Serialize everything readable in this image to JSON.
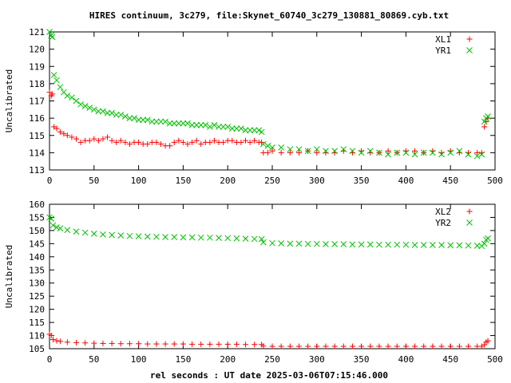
{
  "figure": {
    "title": "HIRES continuum, 3c279, file:Skynet_60740_3c279_130881_80869.cyb.txt",
    "xlabel": "rel seconds : UT date 2025-03-06T07:15:46.000",
    "colors": {
      "XL": "#ff0000",
      "YR": "#00c000"
    }
  },
  "chart_data": [
    {
      "type": "scatter",
      "title": "HIRES continuum, 3c279, file:Skynet_60740_3c279_130881_80869.cyb.txt",
      "xlabel": "",
      "ylabel": "Uncalibrated",
      "xlim": [
        0,
        500
      ],
      "ylim": [
        113,
        121
      ],
      "xticks": [
        0,
        50,
        100,
        150,
        200,
        250,
        300,
        350,
        400,
        450,
        500
      ],
      "yticks": [
        113,
        114,
        115,
        116,
        117,
        118,
        119,
        120,
        121
      ],
      "grid": false,
      "legend_position": "top-right",
      "series": [
        {
          "name": "XL1",
          "marker": "plus",
          "color": "#ff0000",
          "x": [
            0,
            2,
            3,
            5,
            8,
            12,
            16,
            20,
            25,
            30,
            35,
            40,
            45,
            50,
            55,
            60,
            65,
            70,
            75,
            80,
            85,
            90,
            95,
            100,
            105,
            110,
            115,
            120,
            125,
            130,
            135,
            140,
            145,
            150,
            155,
            160,
            165,
            170,
            175,
            180,
            185,
            190,
            195,
            200,
            205,
            210,
            215,
            220,
            225,
            230,
            235,
            238,
            240,
            245,
            250,
            260,
            270,
            280,
            290,
            300,
            310,
            320,
            330,
            340,
            350,
            360,
            370,
            380,
            390,
            400,
            410,
            420,
            430,
            440,
            450,
            460,
            470,
            480,
            485,
            488,
            490,
            492
          ],
          "y": [
            117.5,
            117.3,
            117.4,
            115.5,
            115.4,
            115.2,
            115.1,
            115.0,
            114.9,
            114.8,
            114.6,
            114.7,
            114.7,
            114.8,
            114.7,
            114.8,
            114.9,
            114.7,
            114.6,
            114.7,
            114.6,
            114.5,
            114.6,
            114.6,
            114.5,
            114.5,
            114.6,
            114.6,
            114.5,
            114.4,
            114.4,
            114.6,
            114.7,
            114.6,
            114.5,
            114.6,
            114.7,
            114.5,
            114.6,
            114.6,
            114.7,
            114.6,
            114.6,
            114.7,
            114.7,
            114.6,
            114.6,
            114.7,
            114.6,
            114.7,
            114.6,
            114.6,
            114.0,
            114.0,
            114.1,
            114.0,
            114.0,
            114.0,
            114.1,
            114.0,
            114.0,
            114.0,
            114.1,
            114.0,
            114.1,
            114.0,
            114.0,
            114.1,
            114.0,
            114.1,
            114.1,
            114.0,
            114.1,
            114.0,
            114.1,
            114.0,
            114.0,
            114.0,
            114.0,
            115.5,
            115.8,
            116.0
          ]
        },
        {
          "name": "YR1",
          "marker": "x",
          "color": "#00c000",
          "x": [
            0,
            2,
            3,
            5,
            8,
            12,
            16,
            20,
            25,
            30,
            35,
            40,
            45,
            50,
            55,
            60,
            65,
            70,
            75,
            80,
            85,
            90,
            95,
            100,
            105,
            110,
            115,
            120,
            125,
            130,
            135,
            140,
            145,
            150,
            155,
            160,
            165,
            170,
            175,
            180,
            185,
            190,
            195,
            200,
            205,
            210,
            215,
            220,
            225,
            230,
            235,
            238,
            240,
            245,
            250,
            260,
            270,
            280,
            290,
            300,
            310,
            320,
            330,
            340,
            350,
            360,
            370,
            380,
            390,
            400,
            410,
            420,
            430,
            440,
            450,
            460,
            470,
            480,
            485,
            488,
            490,
            492
          ],
          "y": [
            121.0,
            120.8,
            120.7,
            118.5,
            118.2,
            117.8,
            117.5,
            117.3,
            117.2,
            117.0,
            116.8,
            116.7,
            116.6,
            116.5,
            116.4,
            116.4,
            116.3,
            116.3,
            116.2,
            116.2,
            116.1,
            116.0,
            116.0,
            115.9,
            115.9,
            115.9,
            115.8,
            115.8,
            115.8,
            115.8,
            115.7,
            115.7,
            115.7,
            115.7,
            115.7,
            115.6,
            115.6,
            115.6,
            115.6,
            115.5,
            115.6,
            115.5,
            115.5,
            115.5,
            115.4,
            115.4,
            115.4,
            115.3,
            115.3,
            115.3,
            115.3,
            115.2,
            114.5,
            114.4,
            114.3,
            114.3,
            114.2,
            114.2,
            114.1,
            114.2,
            114.1,
            114.1,
            114.2,
            114.1,
            114.0,
            114.1,
            114.0,
            113.9,
            114.0,
            114.0,
            113.9,
            114.0,
            114.0,
            113.9,
            114.0,
            114.1,
            113.9,
            113.8,
            113.9,
            115.8,
            116.0,
            116.1
          ]
        }
      ]
    },
    {
      "type": "scatter",
      "title": "",
      "xlabel": "rel seconds : UT date 2025-03-06T07:15:46.000",
      "ylabel": "Uncalibrated",
      "xlim": [
        0,
        500
      ],
      "ylim": [
        105,
        160
      ],
      "xticks": [
        0,
        50,
        100,
        150,
        200,
        250,
        300,
        350,
        400,
        450,
        500
      ],
      "yticks": [
        105,
        110,
        115,
        120,
        125,
        130,
        135,
        140,
        145,
        150,
        155,
        160
      ],
      "grid": false,
      "legend_position": "top-right",
      "series": [
        {
          "name": "XL2",
          "marker": "plus",
          "color": "#ff0000",
          "x": [
            0,
            2,
            4,
            8,
            12,
            20,
            30,
            40,
            50,
            60,
            70,
            80,
            90,
            100,
            110,
            120,
            130,
            140,
            150,
            160,
            170,
            180,
            190,
            200,
            210,
            220,
            230,
            238,
            240,
            250,
            260,
            270,
            280,
            290,
            300,
            310,
            320,
            330,
            340,
            350,
            360,
            370,
            380,
            390,
            400,
            410,
            420,
            430,
            440,
            450,
            460,
            470,
            480,
            485,
            488,
            490,
            492
          ],
          "y": [
            110.5,
            110.0,
            108.5,
            108.0,
            107.8,
            107.5,
            107.3,
            107.2,
            107.1,
            107.0,
            107.0,
            106.9,
            106.9,
            106.9,
            106.8,
            106.8,
            106.8,
            106.8,
            106.8,
            106.7,
            106.7,
            106.7,
            106.7,
            106.7,
            106.7,
            106.6,
            106.6,
            106.6,
            106.0,
            105.9,
            105.9,
            105.9,
            105.9,
            105.9,
            105.9,
            105.9,
            105.9,
            105.9,
            105.9,
            105.9,
            105.9,
            105.9,
            105.9,
            105.9,
            105.9,
            105.9,
            105.9,
            105.9,
            105.9,
            105.9,
            105.9,
            105.9,
            105.9,
            105.9,
            106.5,
            107.5,
            108.0
          ]
        },
        {
          "name": "YR2",
          "marker": "x",
          "color": "#00c000",
          "x": [
            0,
            2,
            4,
            8,
            12,
            20,
            30,
            40,
            50,
            60,
            70,
            80,
            90,
            100,
            110,
            120,
            130,
            140,
            150,
            160,
            170,
            180,
            190,
            200,
            210,
            220,
            230,
            238,
            240,
            250,
            260,
            270,
            280,
            290,
            300,
            310,
            320,
            330,
            340,
            350,
            360,
            370,
            380,
            390,
            400,
            410,
            420,
            430,
            440,
            450,
            460,
            470,
            480,
            485,
            488,
            490,
            492
          ],
          "y": [
            155.0,
            154.5,
            152.0,
            151.2,
            150.8,
            150.2,
            149.6,
            149.2,
            148.8,
            148.5,
            148.3,
            148.1,
            147.9,
            147.8,
            147.7,
            147.6,
            147.5,
            147.5,
            147.4,
            147.4,
            147.3,
            147.3,
            147.2,
            147.1,
            147.0,
            146.9,
            146.8,
            146.7,
            145.5,
            145.2,
            145.1,
            145.0,
            145.0,
            144.9,
            144.9,
            144.8,
            144.8,
            144.8,
            144.7,
            144.7,
            144.7,
            144.6,
            144.6,
            144.6,
            144.6,
            144.5,
            144.5,
            144.5,
            144.5,
            144.4,
            144.4,
            144.3,
            144.2,
            144.1,
            145.0,
            146.5,
            147.0
          ]
        }
      ]
    }
  ]
}
